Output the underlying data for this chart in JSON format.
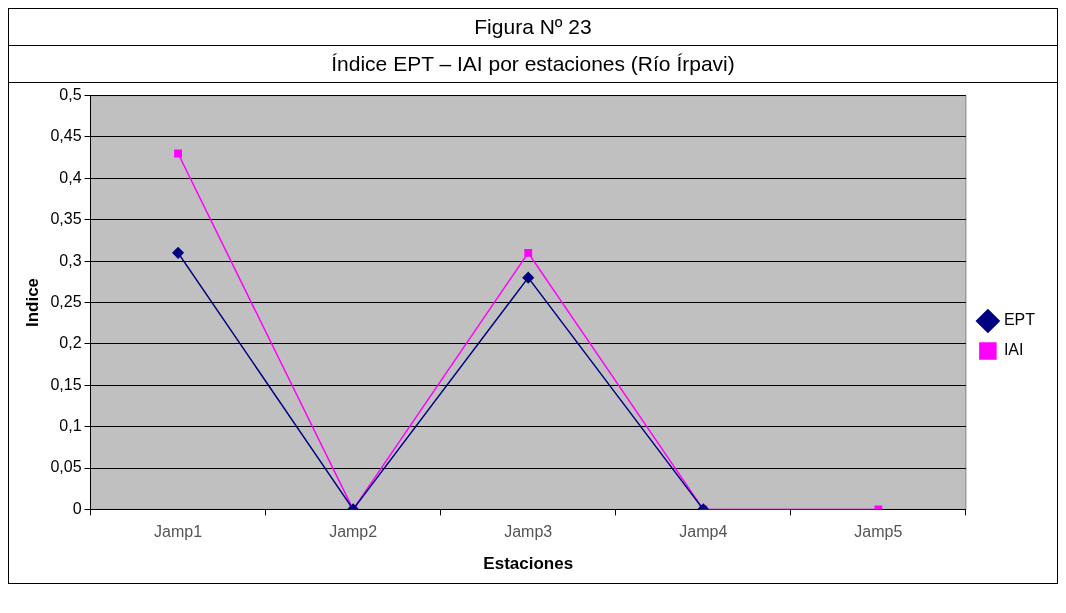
{
  "chart_data": {
    "type": "line",
    "title": "Figura Nº 23",
    "subtitle": "Índice EPT – IAI por estaciones (Río Írpavi)",
    "xlabel": "Estaciones",
    "ylabel": "Indice",
    "categories": [
      "Jamp1",
      "Jamp2",
      "Jamp3",
      "Jamp4",
      "Jamp5"
    ],
    "series": [
      {
        "name": "EPT",
        "color": "#000080",
        "marker": "diamond",
        "values": [
          0.31,
          0,
          0.28,
          0,
          null
        ]
      },
      {
        "name": "IAI",
        "color": "#ff00ff",
        "marker": "square",
        "values": [
          0.43,
          0,
          0.31,
          0,
          0
        ]
      }
    ],
    "ylim": [
      0,
      0.5
    ],
    "yticks": [
      {
        "value": 0,
        "label": "0"
      },
      {
        "value": 0.05,
        "label": "0,05"
      },
      {
        "value": 0.1,
        "label": "0,1"
      },
      {
        "value": 0.15,
        "label": "0,15"
      },
      {
        "value": 0.2,
        "label": "0,2"
      },
      {
        "value": 0.25,
        "label": "0,25"
      },
      {
        "value": 0.3,
        "label": "0,3"
      },
      {
        "value": 0.35,
        "label": "0,35"
      },
      {
        "value": 0.4,
        "label": "0,4"
      },
      {
        "value": 0.45,
        "label": "0,45"
      },
      {
        "value": 0.5,
        "label": "0,5"
      }
    ],
    "grid": "y",
    "legend": "right",
    "line_style": "solid"
  }
}
